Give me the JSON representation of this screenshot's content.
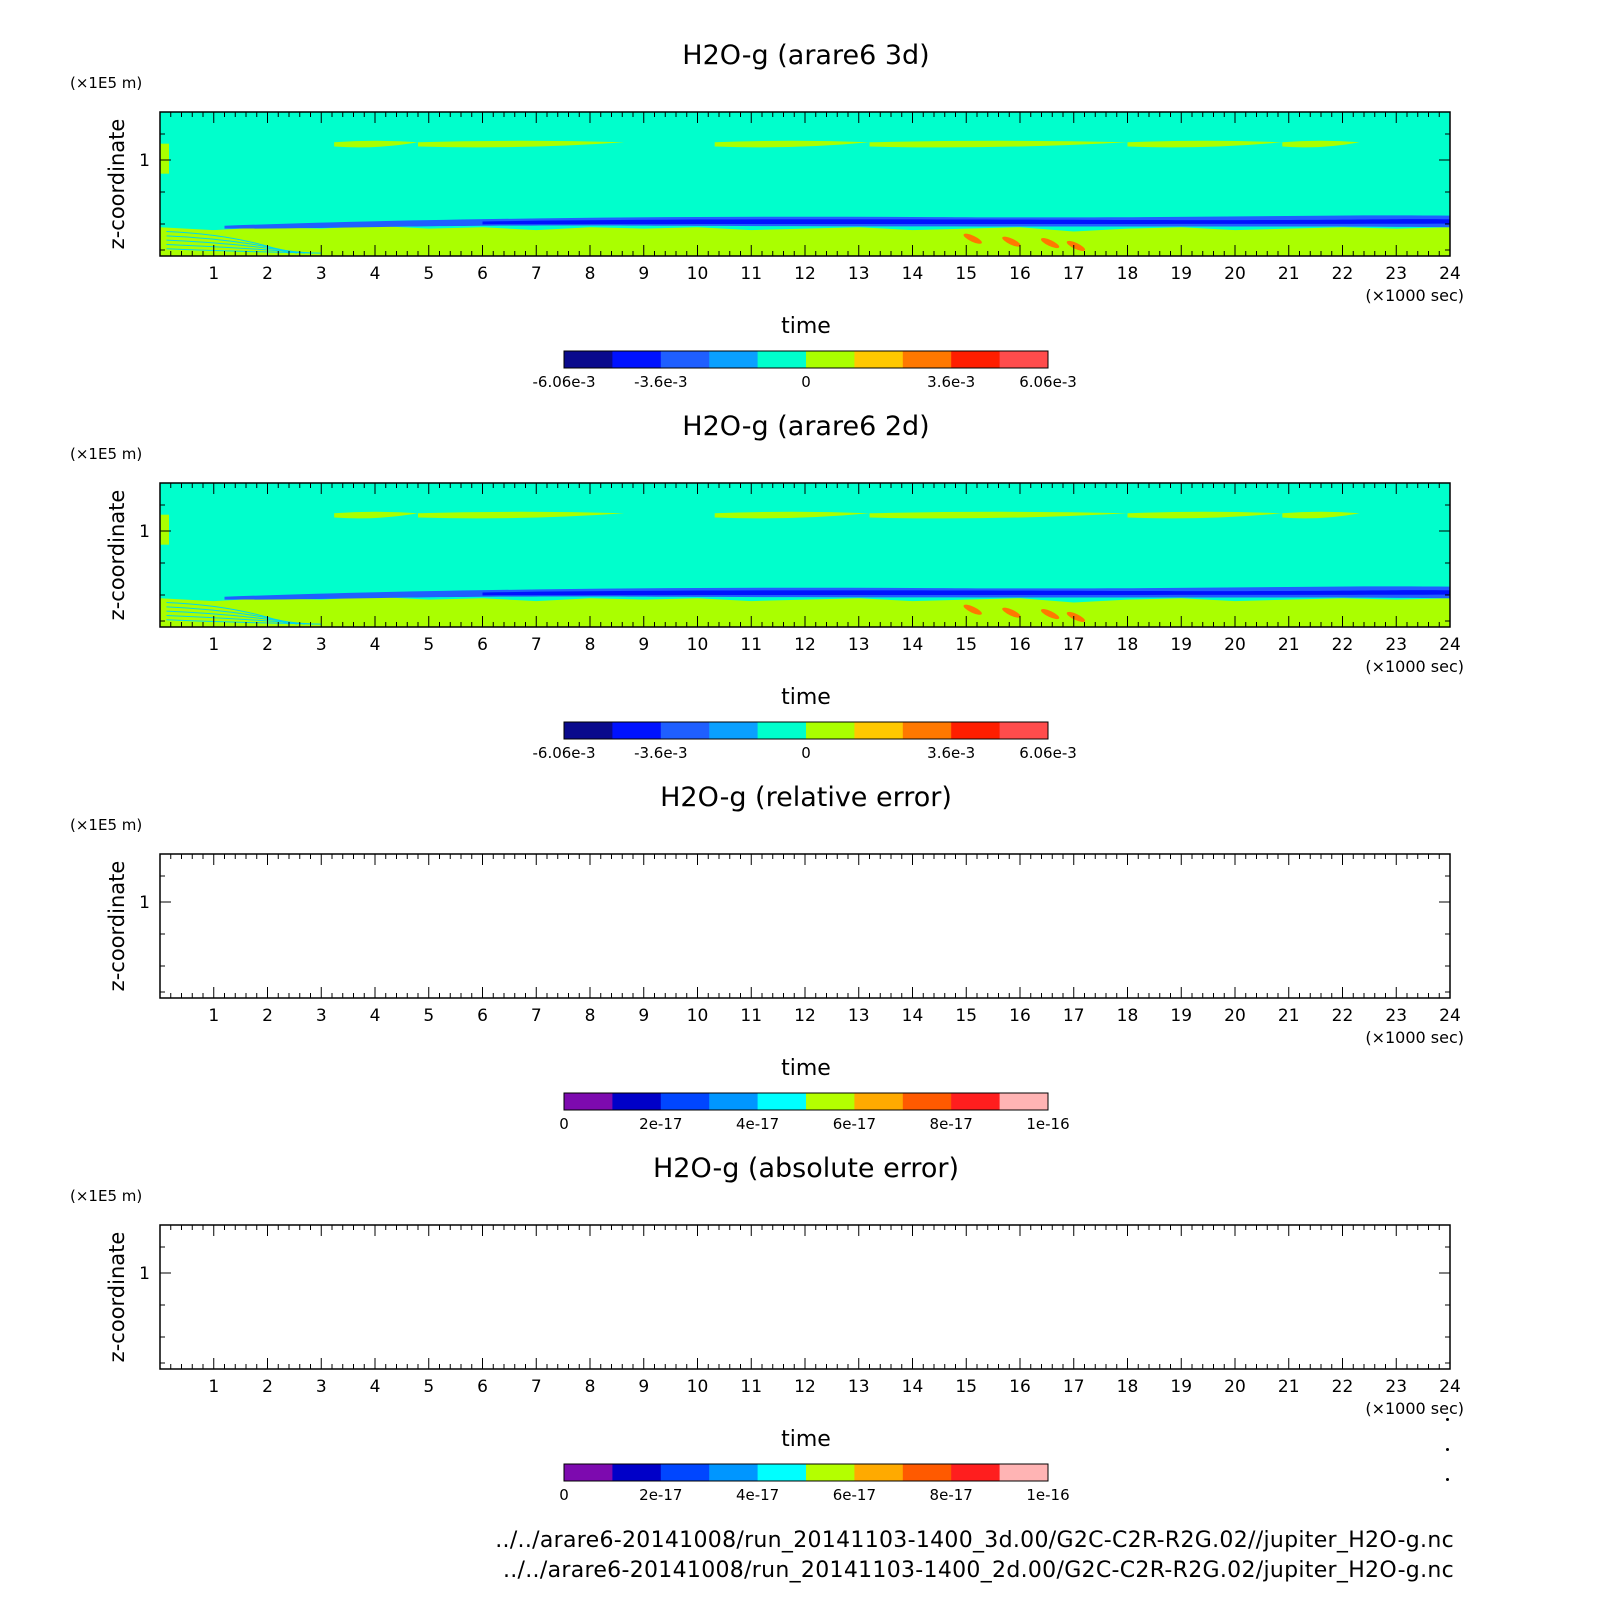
{
  "chart_data": [
    {
      "type": "heatmap",
      "title": "H2O-g (arare6 3d)",
      "xlabel": "time",
      "x_unit": "(×1000 sec)",
      "ylabel": "z-coordinate",
      "y_unit": "(×1E5 m)",
      "xlim": [
        0,
        24
      ],
      "x_ticks": [
        "1",
        "2",
        "3",
        "4",
        "5",
        "6",
        "7",
        "8",
        "9",
        "10",
        "11",
        "12",
        "13",
        "14",
        "15",
        "16",
        "17",
        "18",
        "19",
        "20",
        "21",
        "22",
        "23",
        "24"
      ],
      "y_ticks": [
        "1"
      ],
      "colorbar": {
        "colors": [
          "#0a0a8c",
          "#0012ff",
          "#1f5fff",
          "#0aa0ff",
          "#00ffcc",
          "#aaff00",
          "#ffc800",
          "#ff7800",
          "#ff1e00",
          "#ff4c4c"
        ],
        "labels": [
          "-6.06e-3",
          "-3.6e-3",
          "0",
          "3.6e-3",
          "6.06e-3"
        ]
      },
      "fields": {
        "background": "#00ffcc",
        "lower_layer": "#aaff00",
        "upper_band": "#aaff00",
        "negative_band": "#1f5fff",
        "negative_core": "#0012ff",
        "positive_patches": "#ff7800"
      }
    },
    {
      "type": "heatmap",
      "title": "H2O-g (arare6 2d)",
      "xlabel": "time",
      "x_unit": "(×1000 sec)",
      "ylabel": "z-coordinate",
      "y_unit": "(×1E5 m)",
      "xlim": [
        0,
        24
      ],
      "x_ticks": [
        "1",
        "2",
        "3",
        "4",
        "5",
        "6",
        "7",
        "8",
        "9",
        "10",
        "11",
        "12",
        "13",
        "14",
        "15",
        "16",
        "17",
        "18",
        "19",
        "20",
        "21",
        "22",
        "23",
        "24"
      ],
      "y_ticks": [
        "1"
      ],
      "colorbar": {
        "colors": [
          "#0a0a8c",
          "#0012ff",
          "#1f5fff",
          "#0aa0ff",
          "#00ffcc",
          "#aaff00",
          "#ffc800",
          "#ff7800",
          "#ff1e00",
          "#ff4c4c"
        ],
        "labels": [
          "-6.06e-3",
          "-3.6e-3",
          "0",
          "3.6e-3",
          "6.06e-3"
        ]
      },
      "fields": {
        "background": "#00ffcc",
        "lower_layer": "#aaff00",
        "upper_band": "#aaff00",
        "negative_band": "#1f5fff",
        "negative_core": "#0012ff",
        "positive_patches": "#ff7800"
      }
    },
    {
      "type": "heatmap",
      "title": "H2O-g (relative error)",
      "xlabel": "time",
      "x_unit": "(×1000 sec)",
      "ylabel": "z-coordinate",
      "y_unit": "(×1E5 m)",
      "xlim": [
        0,
        24
      ],
      "x_ticks": [
        "1",
        "2",
        "3",
        "4",
        "5",
        "6",
        "7",
        "8",
        "9",
        "10",
        "11",
        "12",
        "13",
        "14",
        "15",
        "16",
        "17",
        "18",
        "19",
        "20",
        "21",
        "22",
        "23",
        "24"
      ],
      "y_ticks": [
        "1"
      ],
      "colorbar": {
        "colors": [
          "#7d0aaf",
          "#0000c8",
          "#0046ff",
          "#0096ff",
          "#00ffff",
          "#b4ff00",
          "#ffaa00",
          "#ff5a00",
          "#ff1e1e",
          "#ffb4b4"
        ],
        "labels": [
          "0",
          "2e-17",
          "4e-17",
          "6e-17",
          "8e-17",
          "1e-16"
        ]
      },
      "fields": null
    },
    {
      "type": "heatmap",
      "title": "H2O-g (absolute error)",
      "xlabel": "time",
      "x_unit": "(×1000 sec)",
      "ylabel": "z-coordinate",
      "y_unit": "(×1E5 m)",
      "xlim": [
        0,
        24
      ],
      "x_ticks": [
        "1",
        "2",
        "3",
        "4",
        "5",
        "6",
        "7",
        "8",
        "9",
        "10",
        "11",
        "12",
        "13",
        "14",
        "15",
        "16",
        "17",
        "18",
        "19",
        "20",
        "21",
        "22",
        "23",
        "24"
      ],
      "y_ticks": [
        "1"
      ],
      "colorbar": {
        "colors": [
          "#7d0aaf",
          "#0000c8",
          "#0046ff",
          "#0096ff",
          "#00ffff",
          "#b4ff00",
          "#ffaa00",
          "#ff5a00",
          "#ff1e1e",
          "#ffb4b4"
        ],
        "labels": [
          "0",
          "2e-17",
          "4e-17",
          "6e-17",
          "8e-17",
          "1e-16"
        ]
      },
      "fields": null
    }
  ],
  "footer": {
    "line1": "../../arare6-20141008/run_20141103-1400_3d.00/G2C-C2R-R2G.02//jupiter_H2O-g.nc",
    "line2": "../../arare6-20141008/run_20141103-1400_2d.00/G2C-C2R-R2G.02/jupiter_H2O-g.nc"
  }
}
